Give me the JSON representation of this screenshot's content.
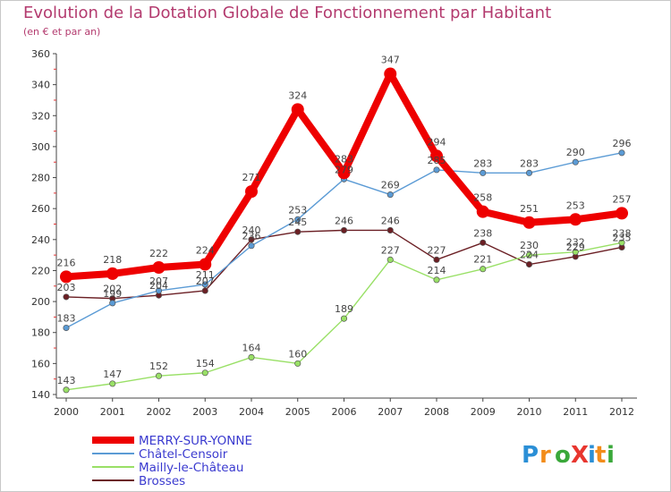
{
  "chart_data": {
    "type": "line",
    "title": "Evolution de la Dotation Globale de Fonctionnement par Habitant",
    "subtitle": "(en € et par an)",
    "xlabel": "",
    "ylabel": "",
    "x": [
      "2000",
      "2001",
      "2002",
      "2003",
      "2004",
      "2005",
      "2006",
      "2007",
      "2008",
      "2009",
      "2010",
      "2011",
      "2012"
    ],
    "ylim": [
      140,
      360
    ],
    "yticks": [
      140,
      160,
      180,
      200,
      220,
      240,
      260,
      280,
      300,
      320,
      340,
      360
    ],
    "grid": false,
    "legend_position": "bottom-left",
    "series": [
      {
        "name": "MERRY-SUR-YONNE",
        "color": "#ee0000",
        "values": [
          216,
          218,
          222,
          224,
          271,
          324,
          283,
          347,
          294,
          258,
          251,
          253,
          257
        ]
      },
      {
        "name": "Châtel-Censoir",
        "color": "#5b9bd5",
        "values": [
          183,
          199,
          207,
          211,
          236,
          253,
          279,
          269,
          285,
          283,
          283,
          290,
          296
        ]
      },
      {
        "name": "Mailly-le-Château",
        "color": "#99e066",
        "values": [
          143,
          147,
          152,
          154,
          164,
          160,
          189,
          227,
          214,
          221,
          230,
          232,
          238
        ]
      },
      {
        "name": "Brosses",
        "color": "#6b1f24",
        "values": [
          203,
          202,
          204,
          207,
          240,
          245,
          246,
          246,
          227,
          238,
          224,
          229,
          235
        ]
      }
    ]
  },
  "logo": {
    "text": "ProXiti",
    "letters": [
      "P",
      "r",
      "o",
      "X",
      "i",
      "t",
      "i"
    ],
    "colors": [
      "#2b8fd6",
      "#f28c1a",
      "#3aa83a",
      "#e8362f",
      "#2b8fd6",
      "#f28c1a",
      "#3aa83a"
    ]
  }
}
